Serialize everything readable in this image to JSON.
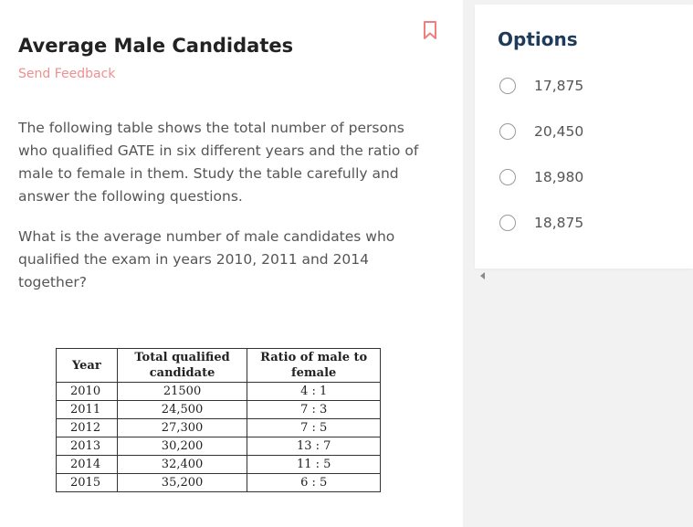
{
  "question": {
    "title": "Average Male Candidates",
    "feedback_label": "Send Feedback",
    "paragraph_1": "The following table shows the total number of persons who qualified GATE in six different years and the ratio of male to female in them. Study the table carefully and answer the following questions.",
    "paragraph_2": "What is the average number of male candidates who qualified the exam in years 2010, 2011 and 2014 together?",
    "bookmark_icon": "bookmark-icon",
    "accent_color": "#ef8f8f"
  },
  "table": {
    "headers": [
      "Year",
      "Total qualified candidate",
      "Ratio of male to female"
    ],
    "rows": [
      [
        "2010",
        "21500",
        "4 : 1"
      ],
      [
        "2011",
        "24,500",
        "7 : 3"
      ],
      [
        "2012",
        "27,300",
        "7 : 5"
      ],
      [
        "2013",
        "30,200",
        "13 : 7"
      ],
      [
        "2014",
        "32,400",
        "11 : 5"
      ],
      [
        "2015",
        "35,200",
        "6 : 5"
      ]
    ]
  },
  "options": {
    "heading": "Options",
    "heading_color": "#1f3b5a",
    "items": [
      {
        "label": "17,875"
      },
      {
        "label": "20,450"
      },
      {
        "label": "18,980"
      },
      {
        "label": "18,875"
      }
    ]
  }
}
